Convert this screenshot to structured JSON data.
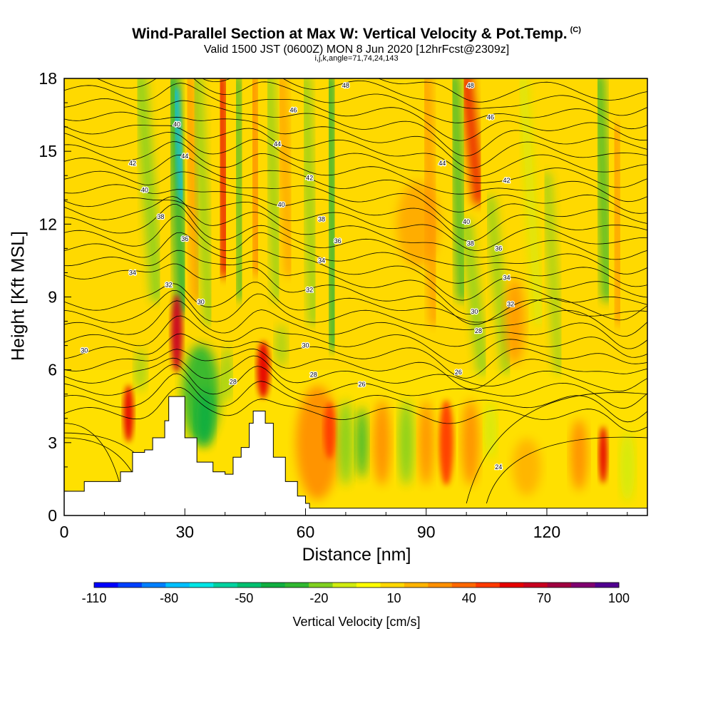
{
  "header": {
    "title": "Wind-Parallel Section at Max W: Vertical Velocity & Pot.Temp.",
    "copyright": "(C)",
    "subtitle": "Valid 1500 JST (0600Z) MON 8 Jun 2020 [12hrFcst@2309z]",
    "subsubtitle": "i,j,k,angle=71,74,24,143"
  },
  "chart_data": {
    "type": "heatmap",
    "xlabel": "Distance [nm]",
    "ylabel": "Height [Kft MSL]",
    "xlim": [
      0,
      145
    ],
    "ylim": [
      0,
      18
    ],
    "xticks": [
      0,
      30,
      60,
      90,
      120
    ],
    "yticks": [
      0,
      3,
      6,
      9,
      12,
      15,
      18
    ],
    "colorbar": {
      "label": "Vertical Velocity [cm/s]",
      "ticks": [
        -110,
        -80,
        -50,
        -20,
        10,
        40,
        70,
        100
      ],
      "colors": [
        "#0000ff",
        "#0040ff",
        "#0080ff",
        "#00c0ff",
        "#00e6e6",
        "#00d2a0",
        "#00c070",
        "#10ae40",
        "#30b830",
        "#80d020",
        "#d0ec10",
        "#ffff00",
        "#ffd800",
        "#ffb400",
        "#ff9000",
        "#ff6800",
        "#ff3a00",
        "#e60000",
        "#c80020",
        "#a00040",
        "#800070",
        "#500090"
      ]
    },
    "shading_features": [
      {
        "x": 29,
        "y": 14,
        "w": -80,
        "note": "downdraft column"
      },
      {
        "x": 28,
        "y": 7,
        "w": 70,
        "note": "updraft"
      },
      {
        "x": 16,
        "y": 4,
        "w": 60
      },
      {
        "x": 40,
        "y": 16,
        "w": 70
      },
      {
        "x": 50,
        "y": 6,
        "w": 60
      },
      {
        "x": 66,
        "y": 15,
        "w": -40
      },
      {
        "x": 95,
        "y": 3,
        "w": 50
      },
      {
        "x": 100,
        "y": 17,
        "w": 60
      },
      {
        "x": 134,
        "y": 2.5,
        "w": 60
      },
      {
        "x": 135,
        "y": 16,
        "w": -40
      }
    ],
    "terrain": [
      [
        0,
        1
      ],
      [
        5,
        1.4
      ],
      [
        10,
        1.4
      ],
      [
        14,
        1.8
      ],
      [
        17,
        2.6
      ],
      [
        20,
        2.7
      ],
      [
        22,
        3.2
      ],
      [
        25,
        3.9
      ],
      [
        26,
        4.9
      ],
      [
        29,
        4.9
      ],
      [
        30,
        3.2
      ],
      [
        33,
        2.2
      ],
      [
        37,
        1.8
      ],
      [
        40,
        1.7
      ],
      [
        42,
        2.4
      ],
      [
        44,
        2.8
      ],
      [
        46,
        3.8
      ],
      [
        47,
        4.3
      ],
      [
        49,
        4.3
      ],
      [
        50,
        3.8
      ],
      [
        52,
        2.4
      ],
      [
        55,
        1.4
      ],
      [
        58,
        0.8
      ],
      [
        60,
        0.5
      ],
      [
        61,
        0.3
      ],
      [
        145,
        0.3
      ]
    ],
    "isentropes": {
      "label": "Pot.Temp.",
      "levels": [
        24,
        26,
        28,
        30,
        32,
        34,
        36,
        38,
        40,
        42,
        44,
        46,
        48
      ],
      "labels": [
        {
          "x": 5,
          "y": 6.8,
          "text": "30"
        },
        {
          "x": 17,
          "y": 10.0,
          "text": "34"
        },
        {
          "x": 26,
          "y": 9.5,
          "text": "32"
        },
        {
          "x": 34,
          "y": 8.8,
          "text": "30"
        },
        {
          "x": 30,
          "y": 11.4,
          "text": "36"
        },
        {
          "x": 24,
          "y": 12.3,
          "text": "38"
        },
        {
          "x": 20,
          "y": 13.4,
          "text": "40"
        },
        {
          "x": 17,
          "y": 14.5,
          "text": "42"
        },
        {
          "x": 30,
          "y": 14.8,
          "text": "44"
        },
        {
          "x": 28,
          "y": 16.1,
          "text": "40"
        },
        {
          "x": 42,
          "y": 5.5,
          "text": "28"
        },
        {
          "x": 60,
          "y": 7.0,
          "text": "30"
        },
        {
          "x": 62,
          "y": 5.8,
          "text": "28"
        },
        {
          "x": 74,
          "y": 5.4,
          "text": "26"
        },
        {
          "x": 61,
          "y": 9.3,
          "text": "32"
        },
        {
          "x": 64,
          "y": 10.5,
          "text": "34"
        },
        {
          "x": 68,
          "y": 11.3,
          "text": "36"
        },
        {
          "x": 64,
          "y": 12.2,
          "text": "38"
        },
        {
          "x": 54,
          "y": 12.8,
          "text": "40"
        },
        {
          "x": 61,
          "y": 13.9,
          "text": "42"
        },
        {
          "x": 53,
          "y": 15.3,
          "text": "44"
        },
        {
          "x": 57,
          "y": 16.7,
          "text": "46"
        },
        {
          "x": 70,
          "y": 17.7,
          "text": "48"
        },
        {
          "x": 101,
          "y": 17.7,
          "text": "48"
        },
        {
          "x": 106,
          "y": 16.4,
          "text": "46"
        },
        {
          "x": 94,
          "y": 14.5,
          "text": "44"
        },
        {
          "x": 110,
          "y": 13.8,
          "text": "42"
        },
        {
          "x": 100,
          "y": 12.1,
          "text": "40"
        },
        {
          "x": 101,
          "y": 11.2,
          "text": "38"
        },
        {
          "x": 108,
          "y": 11.0,
          "text": "36"
        },
        {
          "x": 110,
          "y": 9.8,
          "text": "34"
        },
        {
          "x": 111,
          "y": 8.7,
          "text": "32"
        },
        {
          "x": 102,
          "y": 8.4,
          "text": "30"
        },
        {
          "x": 103,
          "y": 7.6,
          "text": "28"
        },
        {
          "x": 98,
          "y": 5.9,
          "text": "26"
        },
        {
          "x": 108,
          "y": 2.0,
          "text": "24"
        }
      ]
    }
  }
}
